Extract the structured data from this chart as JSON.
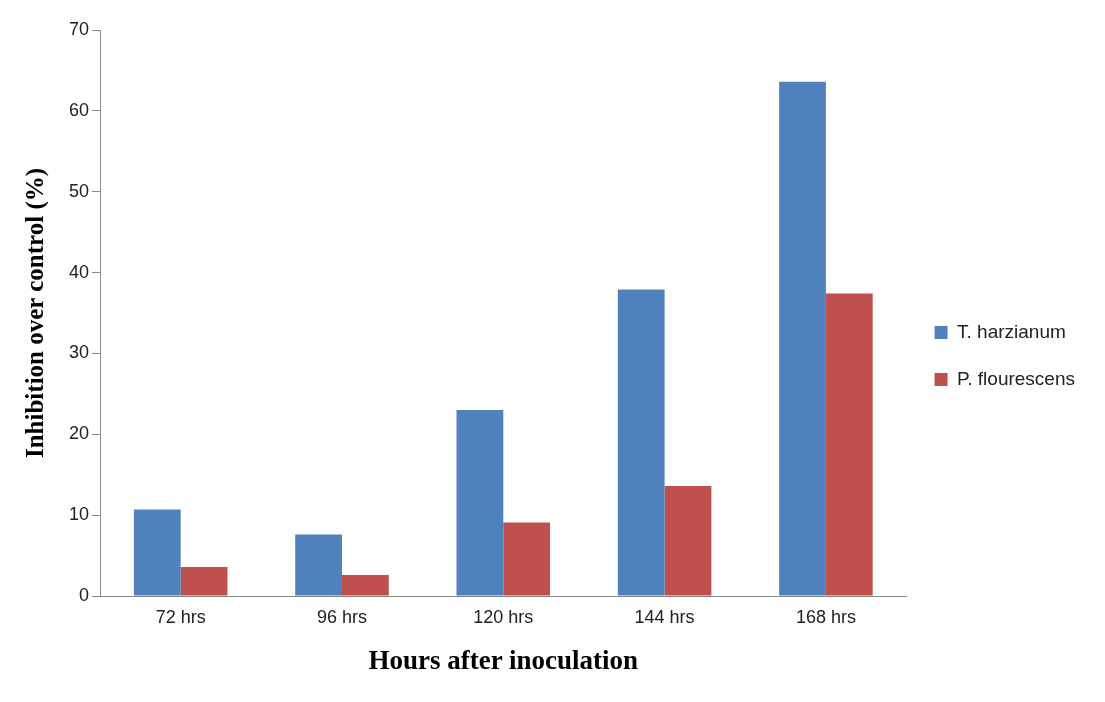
{
  "chart_data": {
    "type": "bar",
    "xlabel": "Hours after inoculation",
    "ylabel": "Inhibition over control (%)",
    "categories": [
      "72 hrs",
      "96 hrs",
      "120 hrs",
      "144 hrs",
      "168 hrs"
    ],
    "series": [
      {
        "name": "T. harzianum",
        "color": "#4f81bd",
        "values": [
          10.7,
          7.6,
          23.0,
          37.9,
          63.6
        ]
      },
      {
        "name": "P. flourescens",
        "color": "#c0504d",
        "values": [
          3.6,
          2.6,
          9.1,
          13.6,
          37.4
        ]
      }
    ],
    "ylim": [
      0,
      70
    ],
    "yticks": [
      0,
      10,
      20,
      30,
      40,
      50,
      60,
      70
    ],
    "grid": false,
    "legend": "right"
  }
}
